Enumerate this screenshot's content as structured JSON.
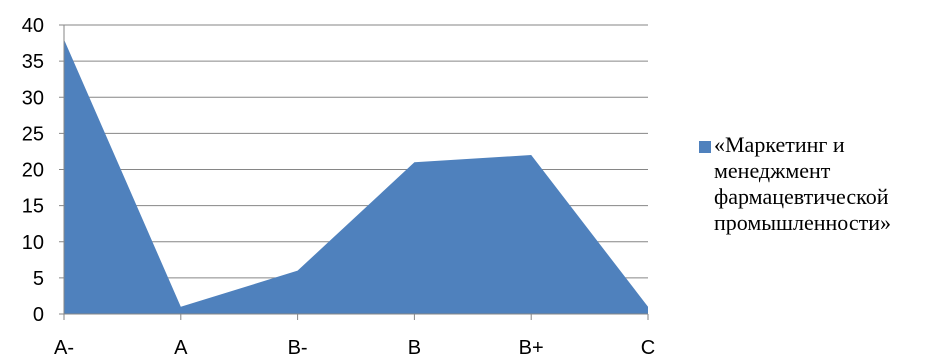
{
  "chart_data": {
    "type": "area",
    "categories": [
      "A-",
      "A",
      "B-",
      "B",
      "B+",
      "C"
    ],
    "series": [
      {
        "name": "«Маркетинг и менеджмент фармацевтической промышленности»",
        "values": [
          38,
          1,
          6,
          21,
          22,
          1
        ],
        "color": "#4F81BD"
      }
    ],
    "title": "",
    "xlabel": "",
    "ylabel": "",
    "ylim": [
      0,
      40
    ],
    "yticks": [
      0,
      5,
      10,
      15,
      20,
      25,
      30,
      35,
      40
    ],
    "grid": true,
    "legend_position": "right"
  }
}
